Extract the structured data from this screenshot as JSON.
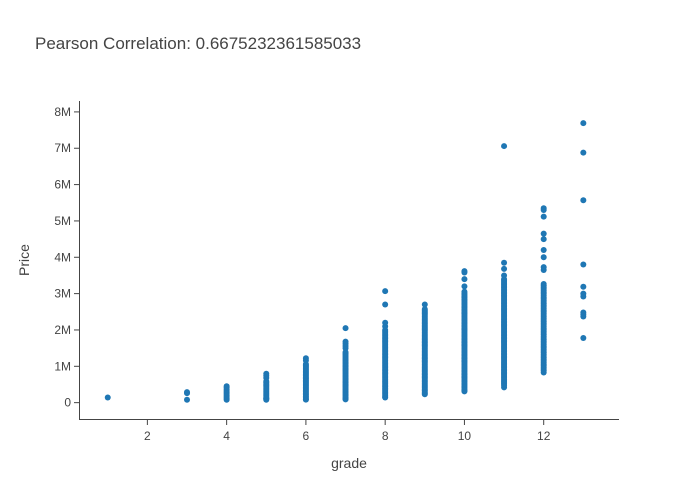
{
  "chart_data": {
    "type": "scatter",
    "title": "Pearson Correlation: 0.6675232361585033",
    "xlabel": "grade",
    "ylabel": "Price",
    "xlim": [
      0.3,
      13.9
    ],
    "ylim": [
      -450000,
      8300000
    ],
    "xticks": [
      2,
      4,
      6,
      8,
      10,
      12
    ],
    "xtick_labels": [
      "2",
      "4",
      "6",
      "8",
      "10",
      "12"
    ],
    "yticks": [
      0,
      1000000,
      2000000,
      3000000,
      4000000,
      5000000,
      6000000,
      7000000,
      8000000
    ],
    "ytick_labels": [
      "0",
      "1M",
      "2M",
      "3M",
      "4M",
      "5M",
      "6M",
      "7M",
      "8M"
    ],
    "grid": false,
    "color": "#1f77b4",
    "columns": [
      {
        "x": 1,
        "points": [
          142000
        ]
      },
      {
        "x": 3,
        "points": [
          80000,
          262000,
          290000
        ]
      },
      {
        "x": 4,
        "points": [
          80000,
          120000,
          160000,
          200000,
          240000,
          280000,
          320000,
          360000,
          410000,
          450000
        ]
      },
      {
        "x": 5,
        "points": [
          78000,
          110000
        ],
        "fill": [
          [
            110000,
            620000,
            40000
          ]
        ],
        "extra": [
          680000,
          740000,
          795000
        ]
      },
      {
        "x": 6,
        "points": [
          82000
        ],
        "fill": [
          [
            100000,
            1080000,
            40000
          ]
        ],
        "extra": [
          1160000,
          1220000
        ]
      },
      {
        "x": 7,
        "points": [
          90000
        ],
        "fill": [
          [
            110000,
            1420000,
            40000
          ]
        ],
        "extra": [
          1500000,
          1560000,
          1620000,
          1680000,
          2050000
        ]
      },
      {
        "x": 8,
        "points": [
          140000
        ],
        "fill": [
          [
            160000,
            2000000,
            40000
          ]
        ],
        "extra": [
          2100000,
          2200000,
          2700000,
          3070000
        ]
      },
      {
        "x": 9,
        "points": [
          230000
        ],
        "fill": [
          [
            250000,
            2600000,
            40000
          ]
        ],
        "extra": [
          2700000
        ]
      },
      {
        "x": 10,
        "points": [
          310000
        ],
        "fill": [
          [
            330000,
            3080000,
            40000
          ]
        ],
        "extra": [
          3200000,
          3400000,
          3580000,
          3620000
        ]
      },
      {
        "x": 11,
        "points": [
          420000
        ],
        "fill": [
          [
            480000,
            3430000,
            40000
          ]
        ],
        "extra": [
          3500000,
          3680000,
          3850000,
          7060000
        ]
      },
      {
        "x": 12,
        "points": [
          830000
        ],
        "fill": [
          [
            880000,
            3300000,
            45000
          ]
        ],
        "extra": [
          3650000,
          3730000,
          4000000,
          4200000,
          4500000,
          4650000,
          5120000,
          5300000,
          5350000
        ]
      },
      {
        "x": 13,
        "points": [
          1780000,
          2370000,
          2430000,
          2480000,
          2920000,
          3000000,
          3190000,
          3800000,
          5570000,
          6880000,
          7690000
        ]
      }
    ]
  }
}
